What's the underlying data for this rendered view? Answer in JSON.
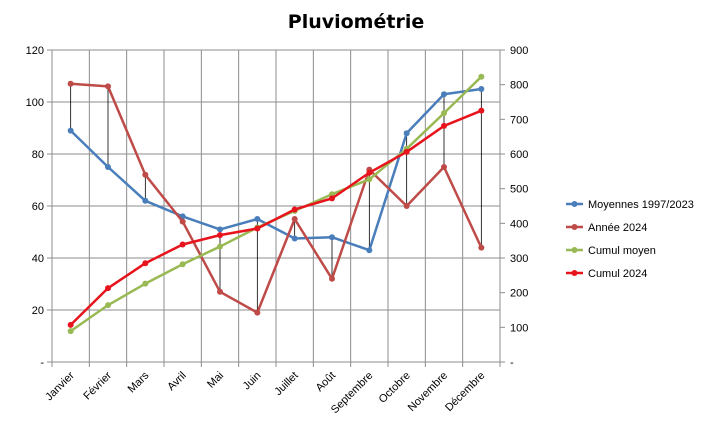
{
  "chart_data": {
    "type": "line",
    "title": "Pluviométrie",
    "categories": [
      "Janvier",
      "Février",
      "Mars",
      "Avril",
      "Mai",
      "Juin",
      "Juillet",
      "Août",
      "Septembre",
      "Octobre",
      "Novembre",
      "Décembre"
    ],
    "y_left": {
      "ylim": [
        0,
        120
      ],
      "ticks": [
        "-",
        "20",
        "40",
        "60",
        "80",
        "100",
        "120"
      ],
      "tick_values": [
        0,
        20,
        40,
        60,
        80,
        100,
        120
      ]
    },
    "y_right": {
      "ylim": [
        0,
        900
      ],
      "ticks": [
        "-",
        "100",
        "200",
        "300",
        "400",
        "500",
        "600",
        "700",
        "800",
        "900"
      ],
      "tick_values": [
        0,
        100,
        200,
        300,
        400,
        500,
        600,
        700,
        800,
        900
      ]
    },
    "grid": true,
    "legend_position": "right",
    "series": [
      {
        "name": "Moyennes 1997/2023",
        "axis": "left",
        "color": "#4a7ebb",
        "values": [
          89,
          75,
          62,
          56,
          51,
          55,
          47.5,
          48,
          43,
          88,
          103,
          105
        ]
      },
      {
        "name": "Année 2024",
        "axis": "left",
        "color": "#be4b48",
        "values": [
          107,
          106,
          72,
          54,
          27,
          19,
          55,
          32,
          74,
          60,
          75,
          44
        ]
      },
      {
        "name": "Cumul moyen",
        "axis": "right",
        "color": "#98b954",
        "values": [
          89,
          164,
          226,
          282,
          333,
          388,
          436,
          484,
          527,
          615,
          718,
          823
        ]
      },
      {
        "name": "Cumul 2024",
        "axis": "right",
        "color": "#e8141d",
        "values": [
          107,
          213,
          285,
          339,
          366,
          385,
          440,
          472,
          546,
          606,
          681,
          725
        ]
      }
    ]
  }
}
